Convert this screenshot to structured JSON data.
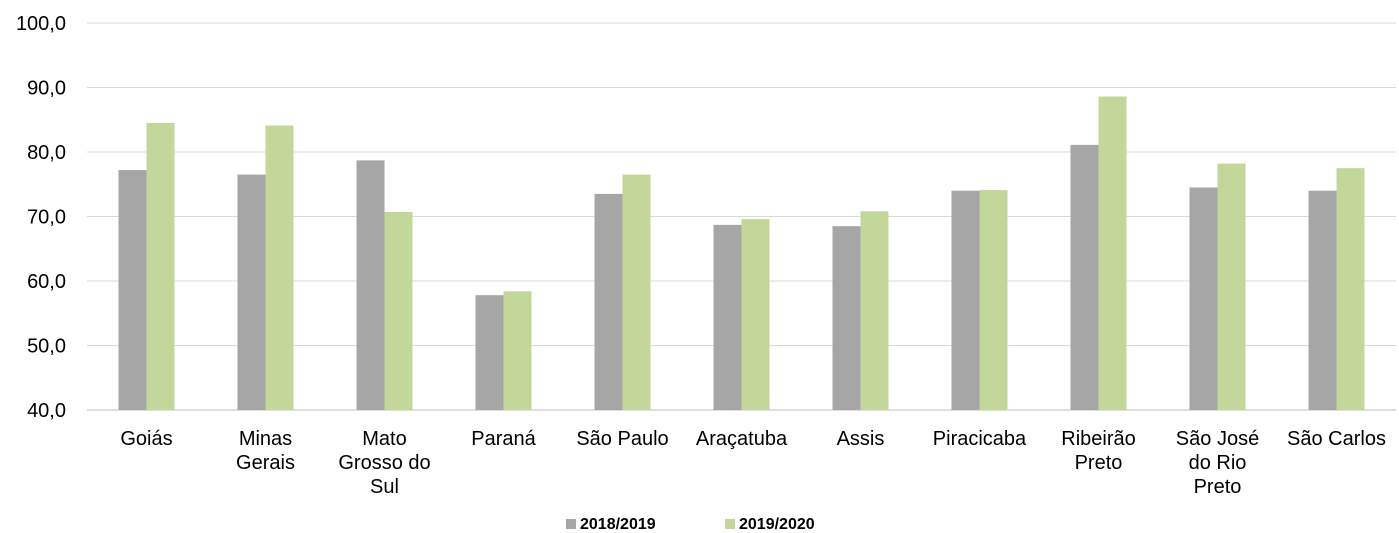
{
  "chart_data": {
    "type": "bar",
    "categories": [
      [
        "Goiás"
      ],
      [
        "Minas",
        "Gerais"
      ],
      [
        "Mato",
        "Grosso do",
        "Sul"
      ],
      [
        "Paraná"
      ],
      [
        "São Paulo"
      ],
      [
        "Araçatuba"
      ],
      [
        "Assis"
      ],
      [
        "Piracicaba"
      ],
      [
        "Ribeirão",
        "Preto"
      ],
      [
        "São José",
        "do Rio",
        "Preto"
      ],
      [
        "São Carlos"
      ]
    ],
    "series": [
      {
        "name": "2018/2019",
        "color": "#a6a6a6",
        "values": [
          77.2,
          76.5,
          78.7,
          57.8,
          73.5,
          68.7,
          68.5,
          74.0,
          81.1,
          74.5,
          74.0
        ]
      },
      {
        "name": "2019/2020",
        "color": "#c4d79b",
        "values": [
          84.5,
          84.1,
          70.7,
          58.4,
          76.5,
          69.6,
          70.8,
          74.1,
          88.6,
          78.2,
          77.5
        ]
      }
    ],
    "ylim": [
      40,
      100
    ],
    "yticks": [
      "40,0",
      "50,0",
      "60,0",
      "70,0",
      "80,0",
      "90,0",
      "100,0"
    ],
    "grid": true,
    "legend_position": "bottom"
  }
}
